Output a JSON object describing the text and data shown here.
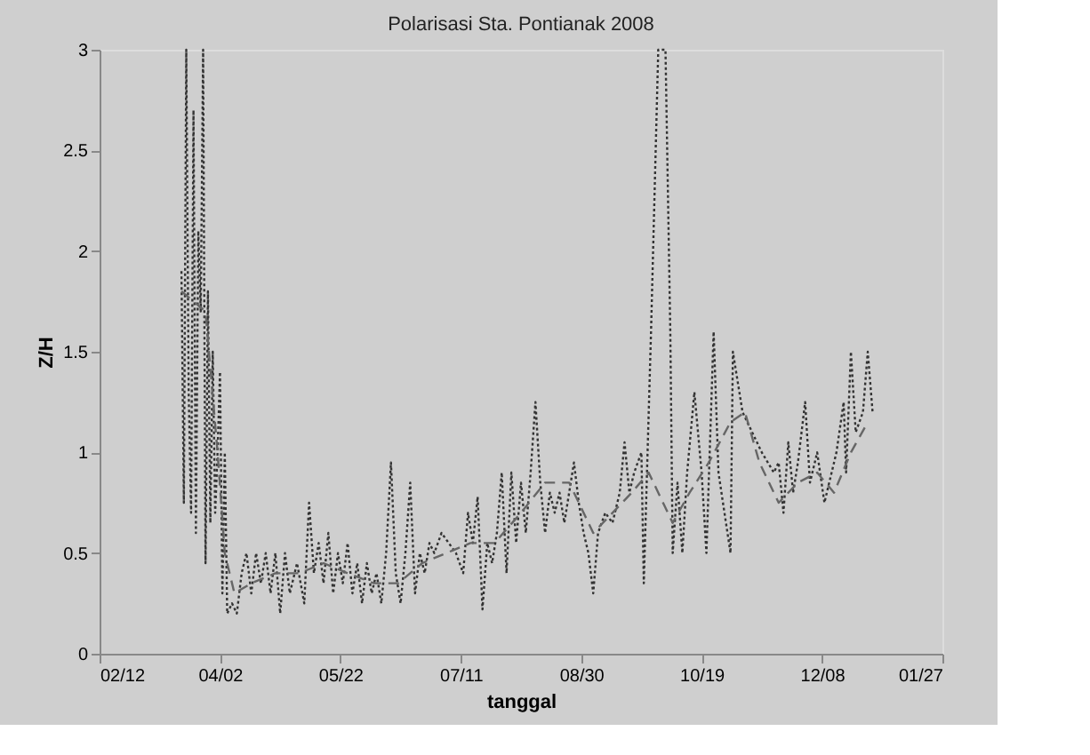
{
  "chart_data": {
    "type": "line",
    "title": "Polarisasi Sta. Pontianak 2008",
    "xlabel": "tanggal",
    "ylabel": "Z/H",
    "xlim": [
      "2008-02-12",
      "2009-01-27"
    ],
    "xticks": [
      {
        "value": "2008-02-12",
        "label": "02/12"
      },
      {
        "value": "2008-04-02",
        "label": "04/02"
      },
      {
        "value": "2008-05-22",
        "label": "05/22"
      },
      {
        "value": "2008-07-11",
        "label": "07/11"
      },
      {
        "value": "2008-08-30",
        "label": "08/30"
      },
      {
        "value": "2008-10-19",
        "label": "10/19"
      },
      {
        "value": "2008-12-08",
        "label": "12/08"
      },
      {
        "value": "2009-01-27",
        "label": "01/27"
      }
    ],
    "ylim": [
      0,
      3
    ],
    "yticks": [
      0,
      {
        "value": 0.5,
        "label": "0.5"
      },
      1,
      {
        "value": 1.5,
        "label": "1.5"
      },
      2,
      {
        "value": 2.5,
        "label": "2.5"
      },
      3
    ],
    "grid": false,
    "marker": "none",
    "series": [
      {
        "color": "#333333",
        "line_style": "dotted",
        "x": [
          "2008-03-17",
          "2008-03-18",
          "2008-03-19",
          "2008-03-20",
          "2008-03-21",
          "2008-03-22",
          "2008-03-23",
          "2008-03-24",
          "2008-03-25",
          "2008-03-26",
          "2008-03-27",
          "2008-03-28",
          "2008-03-29",
          "2008-03-30",
          "2008-03-31",
          "2008-04-01",
          "2008-04-02",
          "2008-04-03",
          "2008-04-04",
          "2008-04-05",
          "2008-04-07",
          "2008-04-09",
          "2008-04-11",
          "2008-04-13",
          "2008-04-15",
          "2008-04-17",
          "2008-04-19",
          "2008-04-21",
          "2008-04-23",
          "2008-04-25",
          "2008-04-27",
          "2008-04-29",
          "2008-05-01",
          "2008-05-04",
          "2008-05-07",
          "2008-05-09",
          "2008-05-11",
          "2008-05-13",
          "2008-05-15",
          "2008-05-17",
          "2008-05-19",
          "2008-05-21",
          "2008-05-23",
          "2008-05-25",
          "2008-05-27",
          "2008-05-29",
          "2008-05-31",
          "2008-06-02",
          "2008-06-04",
          "2008-06-06",
          "2008-06-08",
          "2008-06-10",
          "2008-06-12",
          "2008-06-14",
          "2008-06-16",
          "2008-06-18",
          "2008-06-20",
          "2008-06-22",
          "2008-06-24",
          "2008-06-26",
          "2008-06-28",
          "2008-06-30",
          "2008-07-03",
          "2008-07-06",
          "2008-07-09",
          "2008-07-12",
          "2008-07-14",
          "2008-07-16",
          "2008-07-18",
          "2008-07-20",
          "2008-07-22",
          "2008-07-24",
          "2008-07-26",
          "2008-07-28",
          "2008-07-30",
          "2008-08-01",
          "2008-08-03",
          "2008-08-05",
          "2008-08-07",
          "2008-08-09",
          "2008-08-11",
          "2008-08-13",
          "2008-08-15",
          "2008-08-17",
          "2008-08-19",
          "2008-08-21",
          "2008-08-23",
          "2008-08-25",
          "2008-08-27",
          "2008-08-29",
          "2008-08-31",
          "2008-09-02",
          "2008-09-04",
          "2008-09-06",
          "2008-09-09",
          "2008-09-12",
          "2008-09-15",
          "2008-09-17",
          "2008-09-19",
          "2008-09-21",
          "2008-09-24",
          "2008-09-25",
          "2008-09-28",
          "2008-10-01",
          "2008-10-04",
          "2008-10-06",
          "2008-10-07",
          "2008-10-09",
          "2008-10-11",
          "2008-10-13",
          "2008-10-16",
          "2008-10-19",
          "2008-10-21",
          "2008-10-24",
          "2008-10-26",
          "2008-10-31",
          "2008-11-01",
          "2008-11-05",
          "2008-11-09",
          "2008-11-13",
          "2008-11-18",
          "2008-11-20",
          "2008-11-22",
          "2008-11-24",
          "2008-11-26",
          "2008-11-28",
          "2008-12-01",
          "2008-12-03",
          "2008-12-06",
          "2008-12-09",
          "2008-12-11",
          "2008-12-14",
          "2008-12-17",
          "2008-12-18",
          "2008-12-20",
          "2008-12-22",
          "2008-12-25",
          "2008-12-27",
          "2008-12-29"
        ],
        "values": [
          1.9,
          0.75,
          3.0,
          1.3,
          0.7,
          2.7,
          0.6,
          2.1,
          1.7,
          3.0,
          0.45,
          1.8,
          0.65,
          1.5,
          0.7,
          1.0,
          1.4,
          0.3,
          1.0,
          0.2,
          0.25,
          0.2,
          0.4,
          0.5,
          0.3,
          0.5,
          0.35,
          0.5,
          0.3,
          0.5,
          0.2,
          0.5,
          0.3,
          0.45,
          0.25,
          0.75,
          0.4,
          0.55,
          0.35,
          0.6,
          0.3,
          0.5,
          0.35,
          0.55,
          0.3,
          0.45,
          0.25,
          0.45,
          0.3,
          0.4,
          0.25,
          0.5,
          0.95,
          0.4,
          0.25,
          0.5,
          0.85,
          0.3,
          0.5,
          0.4,
          0.55,
          0.5,
          0.6,
          0.55,
          0.5,
          0.4,
          0.7,
          0.55,
          0.78,
          0.22,
          0.55,
          0.45,
          0.6,
          0.9,
          0.4,
          0.9,
          0.55,
          0.85,
          0.6,
          0.9,
          1.25,
          0.85,
          0.6,
          0.8,
          0.7,
          0.8,
          0.65,
          0.8,
          0.95,
          0.75,
          0.6,
          0.5,
          0.3,
          0.6,
          0.7,
          0.65,
          0.8,
          1.05,
          0.8,
          0.9,
          1.0,
          0.35,
          1.6,
          3.0,
          3.0,
          1.6,
          0.5,
          0.85,
          0.5,
          0.9,
          1.3,
          0.9,
          0.5,
          1.6,
          0.9,
          0.5,
          1.5,
          1.2,
          1.1,
          1.0,
          0.9,
          0.95,
          0.7,
          1.05,
          0.8,
          0.95,
          1.25,
          0.85,
          1.0,
          0.75,
          0.85,
          1.0,
          1.25,
          0.9,
          1.5,
          1.1,
          1.2,
          1.5,
          1.2
        ]
      },
      {
        "color": "#666666",
        "line_style": "dashed",
        "x": [
          "2008-03-17",
          "2008-03-22",
          "2008-03-27",
          "2008-04-01",
          "2008-04-04",
          "2008-04-08",
          "2008-04-15",
          "2008-04-25",
          "2008-05-05",
          "2008-05-15",
          "2008-05-25",
          "2008-06-05",
          "2008-06-15",
          "2008-06-25",
          "2008-07-05",
          "2008-07-15",
          "2008-07-25",
          "2008-08-05",
          "2008-08-15",
          "2008-08-25",
          "2008-09-04",
          "2008-09-12",
          "2008-09-20",
          "2008-09-27",
          "2008-10-07",
          "2008-10-14",
          "2008-10-22",
          "2008-10-31",
          "2008-11-06",
          "2008-11-12",
          "2008-11-20",
          "2008-11-28",
          "2008-12-06",
          "2008-12-13",
          "2008-12-20",
          "2008-12-27"
        ],
        "values": [
          1.8,
          1.75,
          1.7,
          1.0,
          0.5,
          0.3,
          0.35,
          0.4,
          0.4,
          0.45,
          0.4,
          0.35,
          0.35,
          0.45,
          0.5,
          0.55,
          0.55,
          0.7,
          0.85,
          0.85,
          0.6,
          0.7,
          0.8,
          0.9,
          0.65,
          0.8,
          0.95,
          1.15,
          1.2,
          0.95,
          0.75,
          0.85,
          0.9,
          0.8,
          1.0,
          1.15
        ]
      }
    ]
  }
}
